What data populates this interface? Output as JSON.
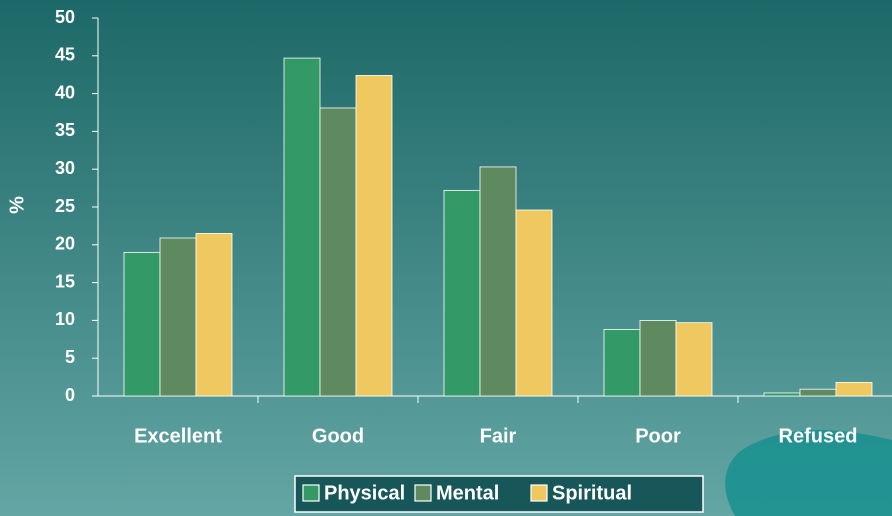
{
  "chart_data": {
    "type": "bar",
    "categories": [
      "Excellent",
      "Good",
      "Fair",
      "Poor",
      "Refused"
    ],
    "series": [
      {
        "name": "Physical",
        "color": "#339966",
        "values": [
          19.0,
          44.7,
          27.2,
          8.8,
          0.4
        ]
      },
      {
        "name": "Mental",
        "color": "#5f8a5f",
        "values": [
          20.9,
          38.1,
          30.3,
          10.0,
          0.9
        ]
      },
      {
        "name": "Spiritual",
        "color": "#f0c860",
        "values": [
          21.5,
          42.4,
          24.6,
          9.7,
          1.8
        ]
      }
    ],
    "y_label": "%",
    "ylim": [
      0,
      50
    ],
    "yticks": [
      0,
      5,
      10,
      15,
      20,
      25,
      30,
      35,
      40,
      45,
      50
    ],
    "legend": "bottom"
  }
}
